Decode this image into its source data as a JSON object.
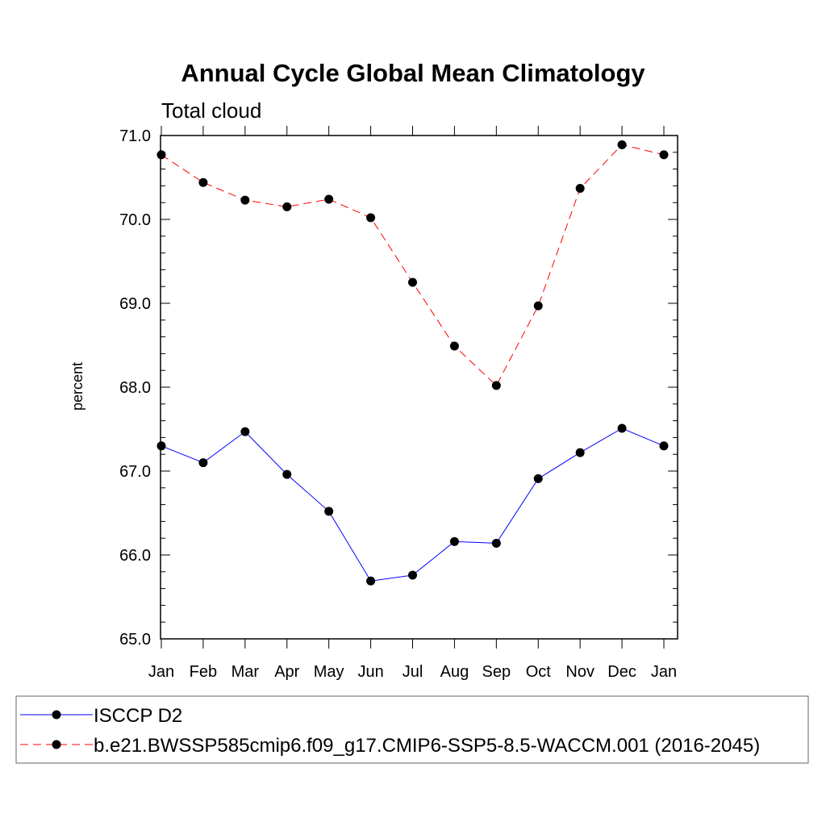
{
  "chart_data": {
    "type": "line",
    "title": "Annual Cycle Global Mean Climatology",
    "subtitle": "Total cloud",
    "xlabel": "",
    "ylabel": "percent",
    "categories": [
      "Jan",
      "Feb",
      "Mar",
      "Apr",
      "May",
      "Jun",
      "Jul",
      "Aug",
      "Sep",
      "Oct",
      "Nov",
      "Dec",
      "Jan"
    ],
    "ylim": [
      65.0,
      71.0
    ],
    "yticks": [
      "65.0",
      "66.0",
      "67.0",
      "68.0",
      "69.0",
      "70.0",
      "71.0"
    ],
    "grid": false,
    "legend_position": "bottom",
    "series": [
      {
        "name": "ISCCP D2",
        "color": "#0000ff",
        "dash": "solid",
        "values": [
          67.3,
          67.1,
          67.47,
          66.96,
          66.52,
          65.69,
          65.76,
          66.16,
          66.14,
          66.91,
          67.22,
          67.51,
          67.3
        ]
      },
      {
        "name": "b.e21.BWSSP585cmip6.f09_g17.CMIP6-SSP5-8.5-WACCM.001 (2016-2045)",
        "color": "#ff0000",
        "dash": "dashed",
        "values": [
          70.77,
          70.44,
          70.23,
          70.15,
          70.24,
          70.02,
          69.25,
          68.49,
          68.02,
          68.97,
          70.37,
          70.89,
          70.77
        ]
      }
    ]
  }
}
